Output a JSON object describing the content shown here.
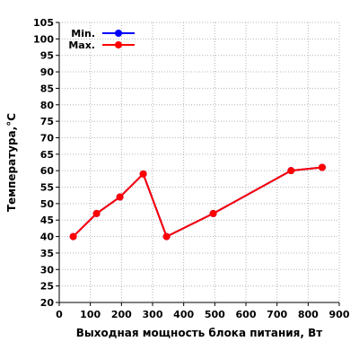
{
  "chart_data": {
    "type": "line",
    "title": "",
    "xlabel": "Выходная мощность блока питания, Вт",
    "ylabel": "Температура,°C",
    "xlim": [
      0,
      900
    ],
    "ylim": [
      20,
      105
    ],
    "x_ticks": [
      0,
      100,
      200,
      300,
      400,
      500,
      600,
      700,
      800,
      900
    ],
    "y_ticks": [
      20,
      25,
      30,
      35,
      40,
      45,
      50,
      55,
      60,
      65,
      70,
      75,
      80,
      85,
      90,
      95,
      100,
      105
    ],
    "grid": true,
    "legend_position": "top-left",
    "series": [
      {
        "name": "Min.",
        "color": "#0000ff",
        "points": [
          [
            45,
            40
          ],
          [
            120,
            47
          ],
          [
            195,
            52
          ],
          [
            270,
            59
          ],
          [
            345,
            40
          ],
          [
            495,
            47
          ],
          [
            745,
            60
          ],
          [
            845,
            61
          ]
        ]
      },
      {
        "name": "Max.",
        "color": "#ff0000",
        "points": [
          [
            45,
            40
          ],
          [
            120,
            47
          ],
          [
            195,
            52
          ],
          [
            270,
            59
          ],
          [
            345,
            40
          ],
          [
            495,
            47
          ],
          [
            745,
            60
          ],
          [
            845,
            61
          ]
        ]
      }
    ]
  }
}
